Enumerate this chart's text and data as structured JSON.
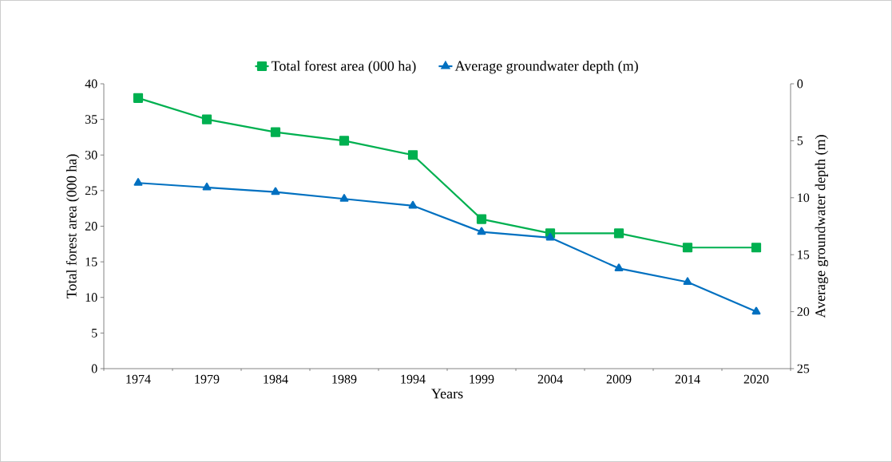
{
  "chart_data": {
    "type": "line",
    "xlabel": "Years",
    "ylabel": "Total forest area (000 ha)",
    "y2label": "Average groundwater depth (m)",
    "categories": [
      "1974",
      "1979",
      "1984",
      "1989",
      "1994",
      "1999",
      "2004",
      "2009",
      "2014",
      "2020"
    ],
    "series": [
      {
        "name": "Total forest area (000 ha)",
        "color": "#00b050",
        "marker": "square",
        "values": [
          38,
          35,
          33.2,
          32,
          30,
          21,
          19,
          19,
          17,
          17
        ]
      },
      {
        "name": "Average groundwater depth (m)",
        "color": "#0070c0",
        "marker": "triangle",
        "axis": "y2",
        "values": [
          8.7,
          9.1,
          9.5,
          10.1,
          10.7,
          13,
          13.5,
          16.2,
          17.4,
          20
        ]
      }
    ],
    "ylim": [
      0,
      40
    ],
    "yticks": [
      0,
      5,
      10,
      15,
      20,
      25,
      30,
      35,
      40
    ],
    "y2lim": [
      25,
      0
    ],
    "y2ticks": [
      0,
      5,
      10,
      15,
      20,
      25
    ],
    "legend": "top",
    "grid": false,
    "line_style": "solid"
  }
}
